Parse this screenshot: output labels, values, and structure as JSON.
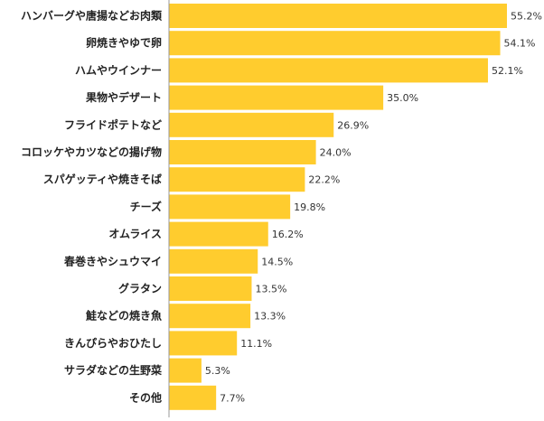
{
  "chart_data": {
    "type": "bar",
    "orientation": "horizontal",
    "categories": [
      "ハンバーグや唐揚などお肉類",
      "卵焼きやゆで卵",
      "ハムやウインナー",
      "果物やデザート",
      "フライドポテトなど",
      "コロッケやカツなどの揚げ物",
      "スパゲッティや焼きそば",
      "チーズ",
      "オムライス",
      "春巻きやシュウマイ",
      "グラタン",
      "鮭などの焼き魚",
      "きんぴらやおひたし",
      "サラダなどの生野菜",
      "その他"
    ],
    "values": [
      55.2,
      54.1,
      52.1,
      35.0,
      26.9,
      24.0,
      22.2,
      19.8,
      16.2,
      14.5,
      13.5,
      13.3,
      11.1,
      5.3,
      7.7
    ],
    "value_labels": [
      "55.2%",
      "54.1%",
      "52.1%",
      "35.0%",
      "26.9%",
      "24.0%",
      "22.2%",
      "19.8%",
      "16.2%",
      "14.5%",
      "13.5%",
      "13.3%",
      "11.1%",
      "5.3%",
      "7.7%"
    ],
    "xlim": [
      0,
      60
    ],
    "bar_color": "#FFCC2E",
    "axis_color": "#999999",
    "grid": false,
    "legend": "none"
  }
}
